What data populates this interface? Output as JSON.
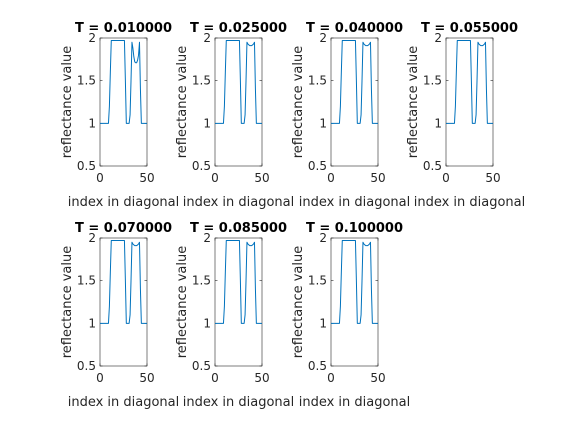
{
  "figure": {
    "background": "#ffffff"
  },
  "chart_data": [
    {
      "type": "line",
      "title": "T = 0.010000",
      "xlabel": "index in diagonal",
      "ylabel": "reflectance value",
      "xlim": [
        0,
        50
      ],
      "ylim": [
        0.5,
        2
      ],
      "xticks": [
        0,
        50
      ],
      "yticks": [
        0.5,
        1,
        1.5,
        2
      ],
      "grid": false,
      "color": "#0072bd",
      "series": [
        {
          "x": [
            0,
            4,
            7,
            9,
            10,
            11,
            12,
            13,
            14,
            20,
            21,
            22,
            23,
            24,
            25,
            26,
            27,
            28,
            29,
            30,
            31,
            32,
            33,
            34,
            35,
            36,
            37,
            38,
            39,
            40,
            41,
            42,
            43,
            44,
            45,
            46,
            47,
            48,
            49,
            50
          ],
          "y": [
            1,
            1,
            1,
            1,
            1.2,
            1.6,
            1.97,
            1.97,
            1.97,
            1.97,
            1.97,
            1.97,
            1.97,
            1.97,
            1.97,
            1.97,
            1.5,
            1,
            1,
            1,
            1,
            1.1,
            1.5,
            1.95,
            1.88,
            1.78,
            1.72,
            1.71,
            1.71,
            1.74,
            1.8,
            1.95,
            1.4,
            1,
            1,
            1,
            1,
            1,
            1,
            1
          ]
        }
      ]
    },
    {
      "type": "line",
      "title": "T = 0.025000",
      "xlabel": "index in diagonal",
      "ylabel": "reflectance value",
      "xlim": [
        0,
        50
      ],
      "ylim": [
        0.5,
        2
      ],
      "xticks": [
        0,
        50
      ],
      "yticks": [
        0.5,
        1,
        1.5,
        2
      ],
      "grid": false,
      "color": "#0072bd",
      "series": [
        {
          "x": [
            0,
            4,
            7,
            9,
            10,
            11,
            12,
            13,
            14,
            20,
            21,
            22,
            23,
            24,
            25,
            26,
            27,
            28,
            29,
            30,
            31,
            32,
            33,
            34,
            35,
            36,
            37,
            38,
            39,
            40,
            41,
            42,
            43,
            44,
            45,
            46,
            47,
            48,
            49,
            50
          ],
          "y": [
            1,
            1,
            1,
            1,
            1.2,
            1.6,
            1.97,
            1.97,
            1.97,
            1.97,
            1.97,
            1.97,
            1.97,
            1.97,
            1.97,
            1.97,
            1.5,
            1,
            1,
            1,
            1,
            1.1,
            1.5,
            1.95,
            1.93,
            1.92,
            1.91,
            1.91,
            1.91,
            1.92,
            1.93,
            1.95,
            1.4,
            1,
            1,
            1,
            1,
            1,
            1,
            1
          ]
        }
      ]
    },
    {
      "type": "line",
      "title": "T = 0.040000",
      "xlabel": "index in diagonal",
      "ylabel": "reflectance value",
      "xlim": [
        0,
        50
      ],
      "ylim": [
        0.5,
        2
      ],
      "xticks": [
        0,
        50
      ],
      "yticks": [
        0.5,
        1,
        1.5,
        2
      ],
      "grid": false,
      "color": "#0072bd",
      "series": [
        {
          "x": [
            0,
            4,
            7,
            9,
            10,
            11,
            12,
            13,
            14,
            20,
            21,
            22,
            23,
            24,
            25,
            26,
            27,
            28,
            29,
            30,
            31,
            32,
            33,
            34,
            35,
            36,
            37,
            38,
            39,
            40,
            41,
            42,
            43,
            44,
            45,
            46,
            47,
            48,
            49,
            50
          ],
          "y": [
            1,
            1,
            1,
            1,
            1.2,
            1.6,
            1.97,
            1.97,
            1.97,
            1.97,
            1.97,
            1.97,
            1.97,
            1.97,
            1.97,
            1.97,
            1.5,
            1,
            1,
            1,
            1,
            1.1,
            1.5,
            1.95,
            1.93,
            1.92,
            1.91,
            1.91,
            1.91,
            1.92,
            1.93,
            1.95,
            1.4,
            1,
            1,
            1,
            1,
            1,
            1,
            1
          ]
        }
      ]
    },
    {
      "type": "line",
      "title": "T = 0.055000",
      "xlabel": "index in diagonal",
      "ylabel": "reflectance value",
      "xlim": [
        0,
        50
      ],
      "ylim": [
        0.5,
        2
      ],
      "xticks": [
        0,
        50
      ],
      "yticks": [
        0.5,
        1,
        1.5,
        2
      ],
      "grid": false,
      "color": "#0072bd",
      "series": [
        {
          "x": [
            0,
            4,
            7,
            9,
            10,
            11,
            12,
            13,
            14,
            20,
            21,
            22,
            23,
            24,
            25,
            26,
            27,
            28,
            29,
            30,
            31,
            32,
            33,
            34,
            35,
            36,
            37,
            38,
            39,
            40,
            41,
            42,
            43,
            44,
            45,
            46,
            47,
            48,
            49,
            50
          ],
          "y": [
            1,
            1,
            1,
            1,
            1.2,
            1.6,
            1.97,
            1.97,
            1.97,
            1.97,
            1.97,
            1.97,
            1.97,
            1.97,
            1.97,
            1.97,
            1.5,
            1,
            1,
            1,
            1,
            1.1,
            1.5,
            1.95,
            1.93,
            1.92,
            1.91,
            1.91,
            1.91,
            1.92,
            1.93,
            1.95,
            1.4,
            1,
            1,
            1,
            1,
            1,
            1,
            1
          ]
        }
      ]
    },
    {
      "type": "line",
      "title": "T = 0.070000",
      "xlabel": "index in diagonal",
      "ylabel": "reflectance value",
      "xlim": [
        0,
        50
      ],
      "ylim": [
        0.5,
        2
      ],
      "xticks": [
        0,
        50
      ],
      "yticks": [
        0.5,
        1,
        1.5,
        2
      ],
      "grid": false,
      "color": "#0072bd",
      "series": [
        {
          "x": [
            0,
            4,
            7,
            9,
            10,
            11,
            12,
            13,
            14,
            20,
            21,
            22,
            23,
            24,
            25,
            26,
            27,
            28,
            29,
            30,
            31,
            32,
            33,
            34,
            35,
            36,
            37,
            38,
            39,
            40,
            41,
            42,
            43,
            44,
            45,
            46,
            47,
            48,
            49,
            50
          ],
          "y": [
            1,
            1,
            1,
            1,
            1.2,
            1.6,
            1.97,
            1.97,
            1.97,
            1.97,
            1.97,
            1.97,
            1.97,
            1.97,
            1.97,
            1.97,
            1.5,
            1,
            1,
            1,
            1,
            1.1,
            1.5,
            1.95,
            1.93,
            1.92,
            1.91,
            1.91,
            1.91,
            1.92,
            1.93,
            1.95,
            1.4,
            1,
            1,
            1,
            1,
            1,
            1,
            1
          ]
        }
      ]
    },
    {
      "type": "line",
      "title": "T = 0.085000",
      "xlabel": "index in diagonal",
      "ylabel": "reflectance value",
      "xlim": [
        0,
        50
      ],
      "ylim": [
        0.5,
        2
      ],
      "xticks": [
        0,
        50
      ],
      "yticks": [
        0.5,
        1,
        1.5,
        2
      ],
      "grid": false,
      "color": "#0072bd",
      "series": [
        {
          "x": [
            0,
            4,
            7,
            9,
            10,
            11,
            12,
            13,
            14,
            20,
            21,
            22,
            23,
            24,
            25,
            26,
            27,
            28,
            29,
            30,
            31,
            32,
            33,
            34,
            35,
            36,
            37,
            38,
            39,
            40,
            41,
            42,
            43,
            44,
            45,
            46,
            47,
            48,
            49,
            50
          ],
          "y": [
            1,
            1,
            1,
            1,
            1.2,
            1.6,
            1.97,
            1.97,
            1.97,
            1.97,
            1.97,
            1.97,
            1.97,
            1.97,
            1.97,
            1.97,
            1.5,
            1,
            1,
            1,
            1,
            1.1,
            1.5,
            1.95,
            1.93,
            1.92,
            1.91,
            1.91,
            1.91,
            1.92,
            1.93,
            1.95,
            1.4,
            1,
            1,
            1,
            1,
            1,
            1,
            1
          ]
        }
      ]
    },
    {
      "type": "line",
      "title": "T = 0.100000",
      "xlabel": "index in diagonal",
      "ylabel": "reflectance value",
      "xlim": [
        0,
        50
      ],
      "ylim": [
        0.5,
        2
      ],
      "xticks": [
        0,
        50
      ],
      "yticks": [
        0.5,
        1,
        1.5,
        2
      ],
      "grid": false,
      "color": "#0072bd",
      "series": [
        {
          "x": [
            0,
            4,
            7,
            9,
            10,
            11,
            12,
            13,
            14,
            20,
            21,
            22,
            23,
            24,
            25,
            26,
            27,
            28,
            29,
            30,
            31,
            32,
            33,
            34,
            35,
            36,
            37,
            38,
            39,
            40,
            41,
            42,
            43,
            44,
            45,
            46,
            47,
            48,
            49,
            50
          ],
          "y": [
            1,
            1,
            1,
            1,
            1.2,
            1.6,
            1.97,
            1.97,
            1.97,
            1.97,
            1.97,
            1.97,
            1.97,
            1.97,
            1.97,
            1.97,
            1.5,
            1,
            1,
            1,
            1,
            1.1,
            1.5,
            1.95,
            1.93,
            1.92,
            1.91,
            1.91,
            1.91,
            1.92,
            1.93,
            1.95,
            1.4,
            1,
            1,
            1,
            1,
            1,
            1,
            1
          ]
        }
      ]
    }
  ]
}
